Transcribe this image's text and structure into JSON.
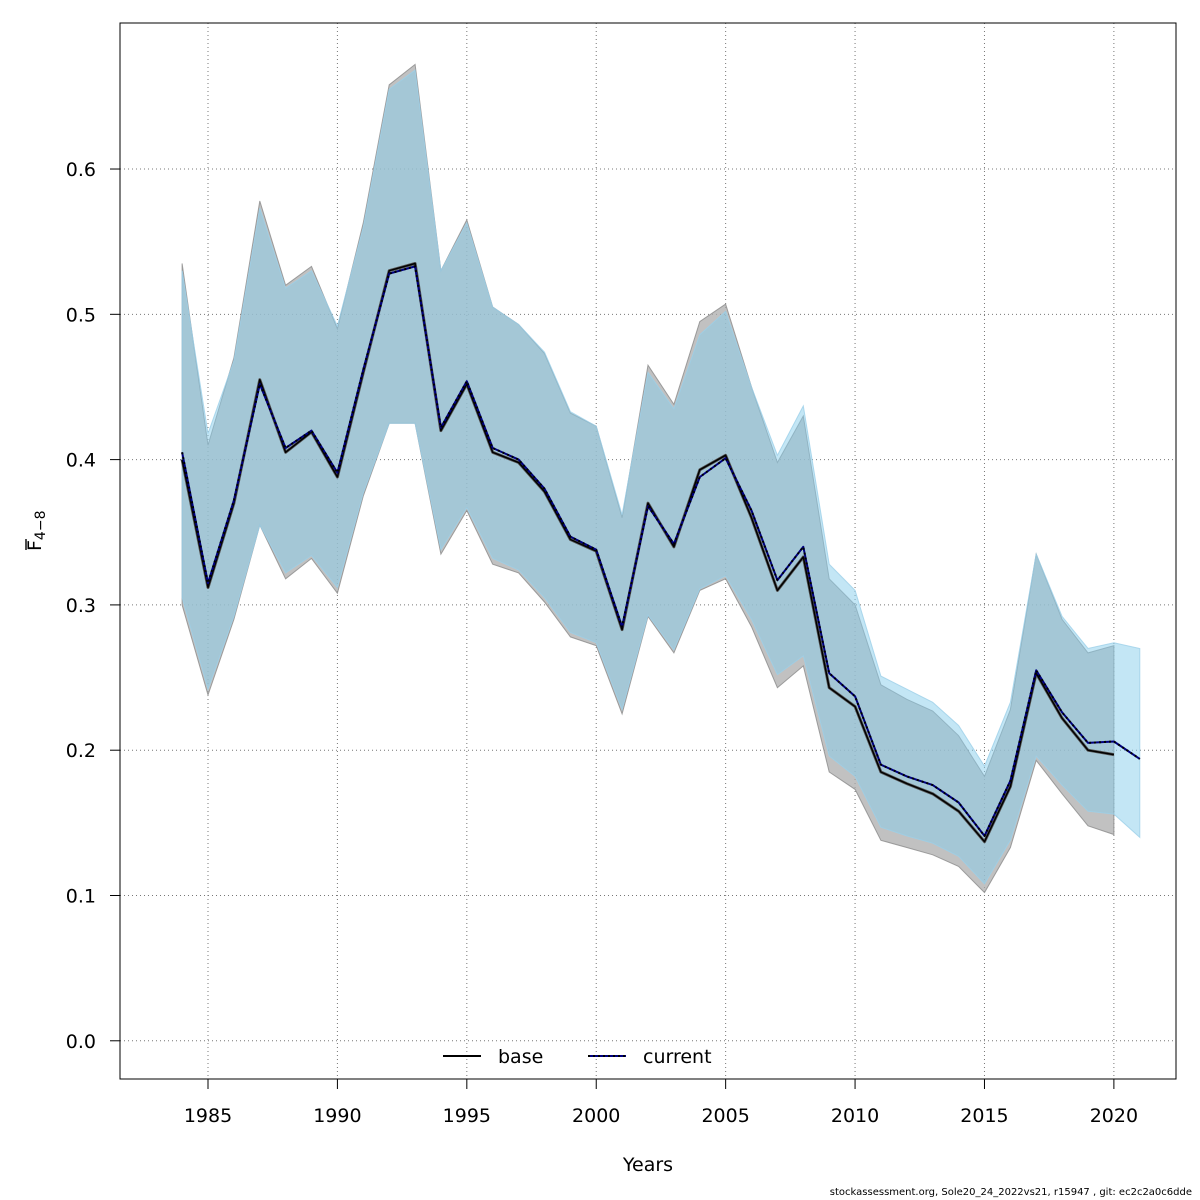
{
  "chart_data": {
    "type": "area",
    "xlabel": "Years",
    "ylabel_main": "F",
    "ylabel_sub": "4−8",
    "xlim": [
      1981.6,
      2022.4
    ],
    "ylim": [
      -0.0263,
      0.7005
    ],
    "xticks": [
      "1985",
      "1990",
      "1995",
      "2000",
      "2005",
      "2010",
      "2015",
      "2020"
    ],
    "yticks": [
      "0.0",
      "0.1",
      "0.2",
      "0.3",
      "0.4",
      "0.5",
      "0.6"
    ],
    "grid": true,
    "legend_placement": "bottom",
    "colors": {
      "base_band": "#a9a9a9",
      "base_line": "#000000",
      "current_band": "#87ceeb",
      "current_line": "#000080"
    },
    "series": [
      {
        "name": "base",
        "x": [
          1984,
          1985,
          1986,
          1987,
          1988,
          1989,
          1990,
          1991,
          1992,
          1993,
          1994,
          1995,
          1996,
          1997,
          1998,
          1999,
          2000,
          2001,
          2002,
          2003,
          2004,
          2005,
          2006,
          2007,
          2008,
          2009,
          2010,
          2011,
          2012,
          2013,
          2014,
          2015,
          2016,
          2017,
          2018,
          2019,
          2020
        ],
        "y": [
          0.4,
          0.312,
          0.37,
          0.455,
          0.405,
          0.419,
          0.388,
          0.46,
          0.53,
          0.535,
          0.42,
          0.452,
          0.405,
          0.398,
          0.378,
          0.345,
          0.337,
          0.283,
          0.37,
          0.34,
          0.393,
          0.403,
          0.36,
          0.31,
          0.333,
          0.243,
          0.23,
          0.185,
          0.177,
          0.17,
          0.158,
          0.137,
          0.175,
          0.253,
          0.222,
          0.2,
          0.197
        ],
        "lower": [
          0.3,
          0.238,
          0.29,
          0.355,
          0.318,
          0.332,
          0.308,
          0.375,
          0.425,
          0.425,
          0.335,
          0.365,
          0.328,
          0.322,
          0.302,
          0.278,
          0.272,
          0.225,
          0.292,
          0.267,
          0.31,
          0.318,
          0.285,
          0.243,
          0.258,
          0.185,
          0.173,
          0.138,
          0.133,
          0.128,
          0.12,
          0.102,
          0.133,
          0.193,
          0.17,
          0.148,
          0.142
        ],
        "upper": [
          0.535,
          0.41,
          0.47,
          0.578,
          0.52,
          0.533,
          0.49,
          0.563,
          0.658,
          0.672,
          0.53,
          0.565,
          0.505,
          0.493,
          0.473,
          0.432,
          0.423,
          0.36,
          0.465,
          0.438,
          0.495,
          0.507,
          0.45,
          0.398,
          0.43,
          0.318,
          0.3,
          0.245,
          0.235,
          0.227,
          0.21,
          0.182,
          0.228,
          0.335,
          0.29,
          0.267,
          0.272
        ]
      },
      {
        "name": "current",
        "x": [
          1984,
          1985,
          1986,
          1987,
          1988,
          1989,
          1990,
          1991,
          1992,
          1993,
          1994,
          1995,
          1996,
          1997,
          1998,
          1999,
          2000,
          2001,
          2002,
          2003,
          2004,
          2005,
          2006,
          2007,
          2008,
          2009,
          2010,
          2011,
          2012,
          2013,
          2014,
          2015,
          2016,
          2017,
          2018,
          2019,
          2020,
          2021
        ],
        "y": [
          0.405,
          0.315,
          0.372,
          0.452,
          0.408,
          0.42,
          0.391,
          0.462,
          0.528,
          0.533,
          0.422,
          0.454,
          0.408,
          0.4,
          0.38,
          0.347,
          0.338,
          0.285,
          0.368,
          0.342,
          0.388,
          0.401,
          0.365,
          0.317,
          0.34,
          0.253,
          0.237,
          0.19,
          0.182,
          0.176,
          0.164,
          0.141,
          0.179,
          0.255,
          0.226,
          0.205,
          0.206,
          0.194
        ],
        "lower": [
          0.305,
          0.242,
          0.292,
          0.355,
          0.322,
          0.334,
          0.312,
          0.377,
          0.425,
          0.425,
          0.338,
          0.367,
          0.332,
          0.324,
          0.305,
          0.281,
          0.274,
          0.228,
          0.293,
          0.269,
          0.311,
          0.32,
          0.29,
          0.252,
          0.265,
          0.196,
          0.182,
          0.147,
          0.141,
          0.136,
          0.127,
          0.108,
          0.138,
          0.196,
          0.176,
          0.158,
          0.156,
          0.14
        ],
        "upper": [
          0.53,
          0.418,
          0.468,
          0.573,
          0.518,
          0.53,
          0.492,
          0.56,
          0.655,
          0.668,
          0.53,
          0.563,
          0.505,
          0.493,
          0.474,
          0.433,
          0.423,
          0.362,
          0.46,
          0.435,
          0.486,
          0.502,
          0.45,
          0.403,
          0.437,
          0.328,
          0.31,
          0.251,
          0.242,
          0.233,
          0.217,
          0.189,
          0.233,
          0.335,
          0.292,
          0.27,
          0.274,
          0.27
        ]
      }
    ]
  },
  "footer_text": "stockassessment.org, Sole20_24_2022vs21, r15947 , git: ec2c2a0c6dde"
}
